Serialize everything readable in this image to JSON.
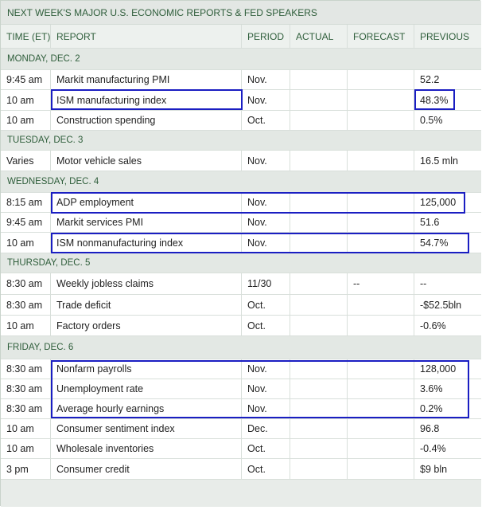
{
  "title": "NEXT WEEK'S MAJOR U.S. ECONOMIC REPORTS & FED SPEAKERS",
  "columns": [
    "TIME (ET)",
    "REPORT",
    "PERIOD",
    "ACTUAL",
    "FORECAST",
    "PREVIOUS"
  ],
  "days": {
    "mon": "MONDAY, DEC. 2",
    "tue": "TUESDAY, DEC. 3",
    "wed": "WEDNESDAY, DEC. 4",
    "thu": "THURSDAY, DEC. 5",
    "fri": "FRIDAY, DEC. 6"
  },
  "rows": [
    {
      "time": "9:45 am",
      "report": "Markit manufacturing PMI",
      "period": "Nov.",
      "actual": "",
      "forecast": "",
      "previous": "52.2"
    },
    {
      "time": "10 am",
      "report": "ISM manufacturing index",
      "period": "Nov.",
      "actual": "",
      "forecast": "",
      "previous": "48.3%"
    },
    {
      "time": "10 am",
      "report": "Construction spending",
      "period": "Oct.",
      "actual": "",
      "forecast": "",
      "previous": "0.5%"
    },
    {
      "time": "Varies",
      "report": "Motor vehicle sales",
      "period": "Nov.",
      "actual": "",
      "forecast": "",
      "previous": "16.5 mln"
    },
    {
      "time": "8:15 am",
      "report": "ADP employment",
      "period": "Nov.",
      "actual": "",
      "forecast": "",
      "previous": "125,000"
    },
    {
      "time": "9:45 am",
      "report": "Markit services PMI",
      "period": "Nov.",
      "actual": "",
      "forecast": "",
      "previous": "51.6"
    },
    {
      "time": "10 am",
      "report": "ISM nonmanufacturing index",
      "period": "Nov.",
      "actual": "",
      "forecast": "",
      "previous": "54.7%"
    },
    {
      "time": "8:30 am",
      "report": "Weekly jobless claims",
      "period": "11/30",
      "actual": "",
      "forecast": "--",
      "previous": "--"
    },
    {
      "time": "8:30 am",
      "report": "Trade deficit",
      "period": "Oct.",
      "actual": "",
      "forecast": "",
      "previous": "-$52.5bln"
    },
    {
      "time": "10 am",
      "report": "Factory orders",
      "period": "Oct.",
      "actual": "",
      "forecast": "",
      "previous": "-0.6%"
    },
    {
      "time": "8:30 am",
      "report": "Nonfarm payrolls",
      "period": "Nov.",
      "actual": "",
      "forecast": "",
      "previous": "128,000"
    },
    {
      "time": "8:30 am",
      "report": "Unemployment rate",
      "period": "Nov.",
      "actual": "",
      "forecast": "",
      "previous": "3.6%"
    },
    {
      "time": "8:30 am",
      "report": "Average hourly earnings",
      "period": "Nov.",
      "actual": "",
      "forecast": "",
      "previous": "0.2%"
    },
    {
      "time": "10 am",
      "report": "Consumer sentiment index",
      "period": "Dec.",
      "actual": "",
      "forecast": "",
      "previous": "96.8"
    },
    {
      "time": "10 am",
      "report": "Wholesale inventories",
      "period": "Oct.",
      "actual": "",
      "forecast": "",
      "previous": "-0.4%"
    },
    {
      "time": "3 pm",
      "report": "Consumer credit",
      "period": "Oct.",
      "actual": "",
      "forecast": "",
      "previous": "$9 bln"
    }
  ],
  "highlight_color": "#1a1ec2"
}
